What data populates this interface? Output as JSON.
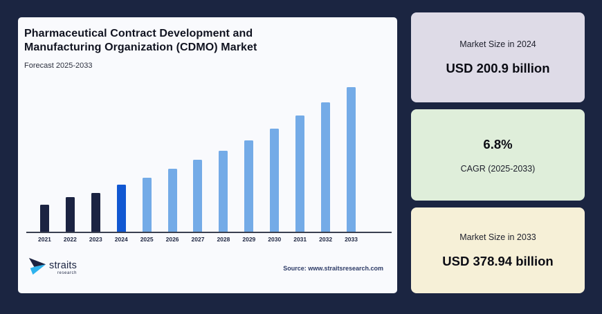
{
  "page": {
    "background": "#1b2541"
  },
  "card": {
    "background": "#f9fafd",
    "title_line1": "Pharmaceutical Contract Development and",
    "title_line2": "Manufacturing Organization (CDMO) Market",
    "subtitle": "Forecast 2025-2033",
    "source": "Source: www.straitsresearch.com"
  },
  "logo": {
    "brand": "straits",
    "brand_sub": "research",
    "arrow_dark": "#1b2342",
    "arrow_light": "#2eb3ee"
  },
  "chart_data": {
    "type": "bar",
    "title": "Pharmaceutical Contract Development and Manufacturing Organization (CDMO) Market",
    "subtitle": "Forecast 2025-2033",
    "categories": [
      "2021",
      "2022",
      "2023",
      "2024",
      "2025",
      "2026",
      "2027",
      "2028",
      "2029",
      "2030",
      "2031",
      "2032",
      "2033"
    ],
    "values": [
      18.7,
      23.9,
      26.8,
      32.5,
      37.3,
      43.5,
      49.8,
      56.0,
      63.2,
      71.3,
      80.4,
      89.5,
      100
    ],
    "values_unit": "relative bar height, percent of tallest (2033) bar; y-axis has no tick labels",
    "known_values_usd_billion": {
      "2024": 200.9,
      "2033": 378.94
    },
    "cagr_2025_2033_pct": 6.8,
    "color_roles": [
      "historical",
      "historical",
      "historical",
      "current",
      "forecast",
      "forecast",
      "forecast",
      "forecast",
      "forecast",
      "forecast",
      "forecast",
      "forecast",
      "forecast"
    ],
    "bar_colors": {
      "historical": "#1b2342",
      "current": "#1157d2",
      "forecast": "#74abe7"
    },
    "axis_color": "#3a4050",
    "grid": false,
    "legend": false,
    "xlabel": "",
    "ylabel": ""
  },
  "panels": [
    {
      "label": "Market Size in 2024",
      "value": "USD 200.9 billion",
      "bg": "#dedbe7"
    },
    {
      "value": "6.8%",
      "label": "CAGR (2025-2033)",
      "bg": "#dfeeda"
    },
    {
      "label": "Market Size in 2033",
      "value": "USD 378.94 billion",
      "bg": "#f6f0d7"
    }
  ]
}
